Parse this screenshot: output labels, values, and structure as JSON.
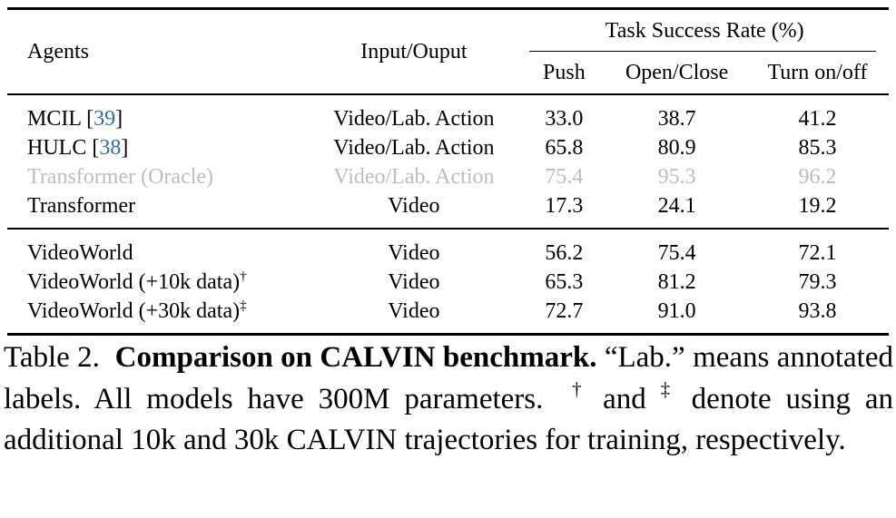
{
  "table": {
    "headers": {
      "agents": "Agents",
      "io": "Input/Ouput",
      "group": "Task Success Rate (%)",
      "push": "Push",
      "open_close": "Open/Close",
      "turn": "Turn on/off"
    },
    "block1": [
      {
        "name": "MCIL [",
        "cite": "39",
        "close": "]",
        "io": "Video/Lab. Action",
        "push": "33.0",
        "open_close": "38.7",
        "turn": "41.2"
      },
      {
        "name": "HULC [",
        "cite": "38",
        "close": "]",
        "io": "Video/Lab. Action",
        "push": "65.8",
        "open_close": "80.9",
        "turn": "85.3"
      },
      {
        "name": "Transformer (Oracle)",
        "io": "Video/Lab. Action",
        "push": "75.4",
        "open_close": "95.3",
        "turn": "96.2"
      },
      {
        "name": "Transformer",
        "io": "Video",
        "push": "17.3",
        "open_close": "24.1",
        "turn": "19.2"
      }
    ],
    "block2": [
      {
        "name": "VideoWorld",
        "mark": "",
        "io": "Video",
        "push": "56.2",
        "open_close": "75.4",
        "turn": "72.1"
      },
      {
        "name": "VideoWorld (+10k data)",
        "mark": "†",
        "io": "Video",
        "push": "65.3",
        "open_close": "81.2",
        "turn": "79.3"
      },
      {
        "name": "VideoWorld (+30k data)",
        "mark": "‡",
        "io": "Video",
        "push": "72.7",
        "open_close": "91.0",
        "turn": "93.8"
      }
    ]
  },
  "caption": {
    "label": "Table 2.",
    "title": "Comparison on CALVIN benchmark.",
    "text1": "“Lab.” means annotated labels. All models have 300M parameters.",
    "dagger": "†",
    "and": "and",
    "ddagger": "‡",
    "text2": "denote using an additional 10k and 30k CALVIN trajectories for training, respectively."
  },
  "colors": {
    "citation": "#2b6cb0",
    "oracle_gray": "#bdbdbd"
  }
}
